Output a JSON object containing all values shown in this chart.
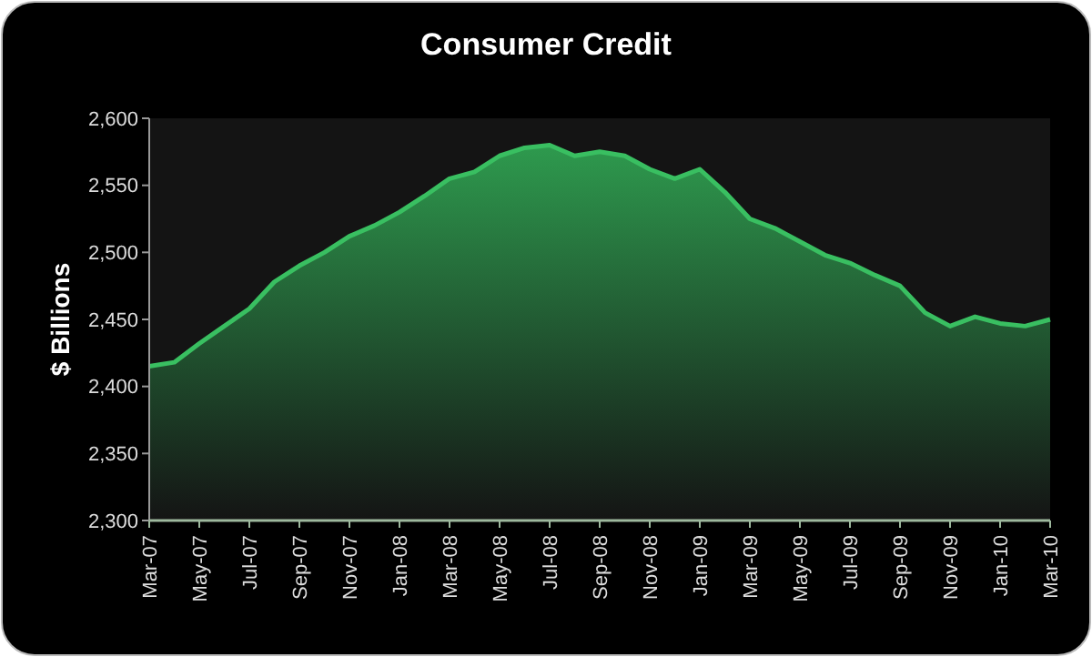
{
  "chart_data": {
    "type": "area",
    "title": "Consumer Credit",
    "ylabel": "$ Billions",
    "categories": [
      "Mar-07",
      null,
      "May-07",
      null,
      "Jul-07",
      null,
      "Sep-07",
      null,
      "Nov-07",
      null,
      "Jan-08",
      null,
      "Mar-08",
      null,
      "May-08",
      null,
      "Jul-08",
      null,
      "Sep-08",
      null,
      "Nov-08",
      null,
      "Jan-09",
      null,
      "Mar-09",
      null,
      "May-09",
      null,
      "Jul-09",
      null,
      "Sep-09",
      null,
      "Nov-09",
      null,
      "Jan-10",
      null,
      "Mar-10"
    ],
    "series": [
      {
        "color": "#2e9a4e",
        "values": [
          2415,
          2418,
          2432,
          2445,
          2458,
          2478,
          2490,
          2500,
          2512,
          2520,
          2530,
          2542,
          2555,
          2560,
          2572,
          2578,
          2580,
          2572,
          2575,
          2572,
          2562,
          2555,
          2562,
          2545,
          2525,
          2518,
          2508,
          2498,
          2492,
          2483,
          2475,
          2455,
          2445,
          2452,
          2447,
          2445,
          2450
        ]
      }
    ],
    "ylim": [
      2300,
      2600
    ],
    "yticks": [
      {
        "value": 2300,
        "label": "2,300"
      },
      {
        "value": 2350,
        "label": "2,350"
      },
      {
        "value": 2400,
        "label": "2,400"
      },
      {
        "value": 2450,
        "label": "2,450"
      },
      {
        "value": 2500,
        "label": "2,500"
      },
      {
        "value": 2550,
        "label": "2,550"
      },
      {
        "value": 2600,
        "label": "2,600"
      }
    ]
  }
}
